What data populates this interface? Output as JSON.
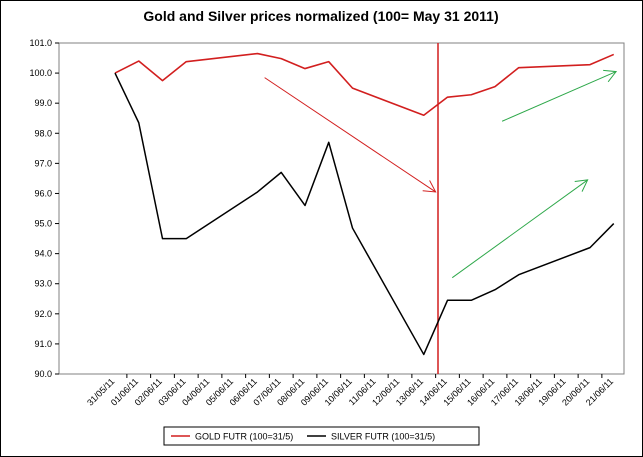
{
  "chart_data": {
    "type": "line",
    "title": "Gold and Silver prices normalized (100= May 31 2011)",
    "xlabel": "",
    "ylabel": "",
    "ylim": [
      90.0,
      101.0
    ],
    "yticks": [
      90.0,
      91.0,
      92.0,
      93.0,
      94.0,
      95.0,
      96.0,
      97.0,
      98.0,
      99.0,
      100.0,
      101.0
    ],
    "y_tick_labels": [
      "90.0",
      "91.0",
      "92.0",
      "93.0",
      "94.0",
      "95.0",
      "96.0",
      "97.0",
      "98.0",
      "99.0",
      "100.0",
      "101.0"
    ],
    "categories": [
      "31/05/11",
      "01/06/11",
      "02/06/11",
      "03/06/11",
      "04/06/11",
      "05/06/11",
      "06/06/11",
      "07/06/11",
      "08/06/11",
      "09/06/11",
      "10/06/11",
      "11/06/11",
      "12/06/11",
      "13/06/11",
      "14/06/11",
      "15/06/11",
      "16/06/11",
      "17/06/11",
      "18/06/11",
      "19/06/11",
      "20/06/11",
      "21/06/11"
    ],
    "grid": false,
    "legend_position": "bottom",
    "series": [
      {
        "name": "GOLD  FUTR (100=31/5)",
        "color": "#d21f1f",
        "points": [
          [
            0,
            100.0
          ],
          [
            1,
            100.4
          ],
          [
            2,
            99.75
          ],
          [
            3,
            100.38
          ],
          [
            6,
            100.65
          ],
          [
            7,
            100.48
          ],
          [
            8,
            100.15
          ],
          [
            9,
            100.38
          ],
          [
            10,
            99.5
          ],
          [
            13,
            98.6
          ],
          [
            14,
            99.2
          ],
          [
            15,
            99.28
          ],
          [
            16,
            99.55
          ],
          [
            17,
            100.18
          ],
          [
            20,
            100.28
          ],
          [
            21,
            100.62
          ]
        ]
      },
      {
        "name": "SILVER  FUTR (100=31/5)",
        "color": "#000000",
        "points": [
          [
            0,
            100.0
          ],
          [
            1,
            98.35
          ],
          [
            2,
            94.5
          ],
          [
            3,
            94.5
          ],
          [
            6,
            96.05
          ],
          [
            7,
            96.7
          ],
          [
            8,
            95.6
          ],
          [
            9,
            97.7
          ],
          [
            10,
            94.85
          ],
          [
            13,
            90.65
          ],
          [
            14,
            92.45
          ],
          [
            15,
            92.45
          ],
          [
            16,
            92.8
          ],
          [
            17,
            93.3
          ],
          [
            20,
            94.2
          ],
          [
            21,
            95.0
          ]
        ]
      }
    ],
    "annotations": [
      {
        "type": "vertical_line",
        "x": 13.6,
        "color": "#d21f1f"
      },
      {
        "type": "arrow",
        "from": [
          6.3,
          99.85
        ],
        "to": [
          13.5,
          96.05
        ],
        "color": "#d21f1f"
      },
      {
        "type": "arrow",
        "from": [
          16.3,
          98.4
        ],
        "to": [
          21.1,
          100.05
        ],
        "color": "#2ea84a"
      },
      {
        "type": "arrow",
        "from": [
          14.2,
          93.2
        ],
        "to": [
          19.9,
          96.45
        ],
        "color": "#2ea84a"
      }
    ]
  }
}
